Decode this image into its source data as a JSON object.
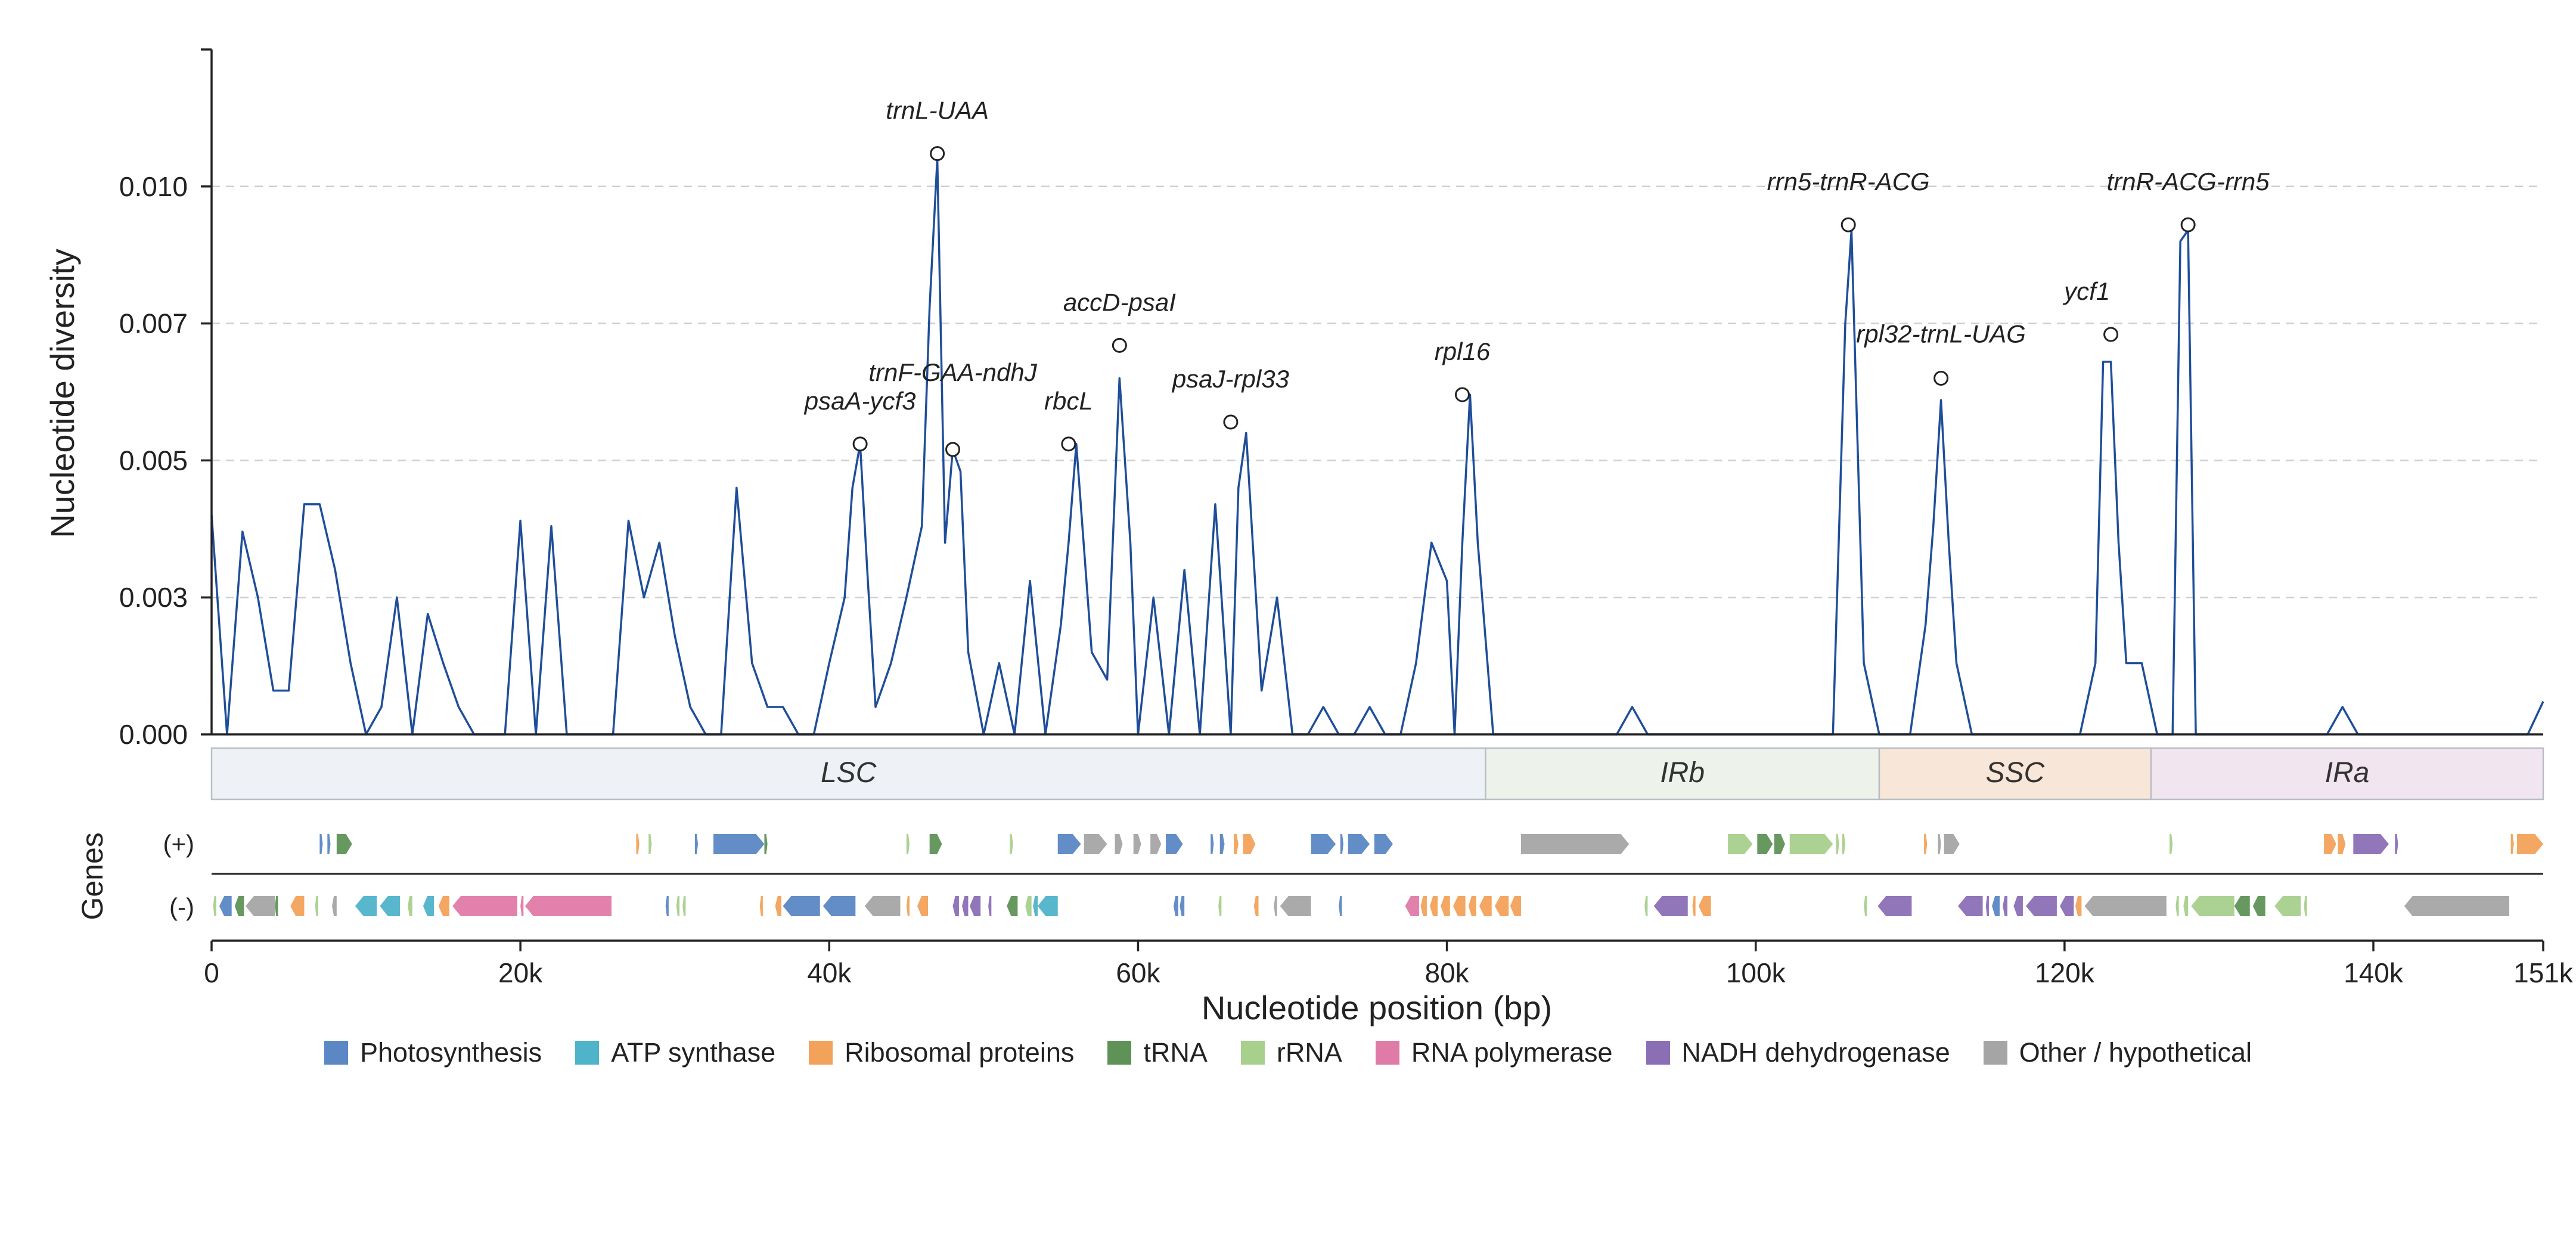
{
  "chart_data": {
    "type": "line",
    "ylabel": "Nucleotide diversity",
    "xlabel": "Nucleotide position (bp)",
    "genes_label": "Genes",
    "strand_plus_label": "(+)",
    "strand_minus_label": "(-)",
    "xlim": [
      0,
      151000
    ],
    "ylim": [
      0,
      0.0125
    ],
    "yticks": [
      0.0,
      0.0025,
      0.005,
      0.0075,
      0.01
    ],
    "ytick_labels": [
      "0.000",
      "0.003",
      "0.005",
      "0.007",
      "0.010"
    ],
    "xticks": [
      0,
      20000,
      40000,
      60000,
      80000,
      100000,
      120000,
      140000,
      151000
    ],
    "xtick_labels": [
      "0",
      "20k",
      "40k",
      "60k",
      "80k",
      "100k",
      "120k",
      "140k",
      "151k"
    ],
    "grid": "horizontal dashed",
    "line_color": "#1f4e99",
    "series": [
      {
        "x": [
          0,
          1000,
          2000,
          3000,
          4000,
          5000,
          6000,
          7000,
          8000,
          9000,
          10000,
          11000,
          12000,
          13000,
          14000,
          15000,
          16000,
          17000,
          18000,
          19000,
          20000,
          21000,
          22000,
          23000,
          24000,
          25000,
          26000,
          27000,
          28000,
          29000,
          30000,
          31000,
          32000,
          33000,
          34000,
          35000,
          36000,
          37000,
          38000,
          39000,
          40000,
          41000,
          41500,
          42000,
          42500,
          43000,
          44000,
          45000,
          46000,
          46500,
          47000,
          47500,
          48000,
          48500,
          49000,
          50000,
          51000,
          52000,
          53000,
          54000,
          55000,
          55500,
          56000,
          57000,
          58000,
          58800,
          59500,
          60000,
          61000,
          62000,
          63000,
          64000,
          65000,
          66000,
          66500,
          67000,
          68000,
          69000,
          70000,
          71000,
          72000,
          73000,
          74000,
          75000,
          76000,
          77000,
          78000,
          79000,
          80000,
          80500,
          81000,
          81500,
          82000,
          83000,
          84000,
          85000,
          86000,
          87000,
          88000,
          89000,
          90000,
          91000,
          92000,
          93000,
          94000,
          95000,
          96000,
          97000,
          98000,
          99000,
          100000,
          101000,
          102000,
          103000,
          104000,
          105000,
          105800,
          106200,
          107000,
          108000,
          109000,
          110000,
          111000,
          111500,
          112000,
          112500,
          113000,
          114000,
          115000,
          116000,
          117000,
          118000,
          119000,
          120000,
          121000,
          122000,
          122500,
          123000,
          123500,
          124000,
          125000,
          126000,
          127000,
          127500,
          128000,
          128500,
          129000,
          130000,
          131000,
          132000,
          133000,
          134000,
          135000,
          136000,
          137000,
          138000,
          139000,
          140000,
          141000,
          142000,
          143000,
          144000,
          145000,
          146000,
          147000,
          148000,
          149000,
          150000,
          151000
        ],
        "y": [
          0.004,
          0.0,
          0.0037,
          0.0025,
          0.0008,
          0.0008,
          0.0042,
          0.0042,
          0.003,
          0.0013,
          0.0,
          0.0005,
          0.0025,
          0.0,
          0.0022,
          0.0013,
          0.0005,
          0.0,
          0.0,
          0.0,
          0.0039,
          0.0,
          0.0038,
          0.0,
          0.0,
          0.0,
          0.0,
          0.0039,
          0.0025,
          0.0035,
          0.0018,
          0.0005,
          0.0,
          0.0,
          0.0045,
          0.0013,
          0.0005,
          0.0005,
          0.0,
          0.0,
          0.0013,
          0.0025,
          0.0045,
          0.0053,
          0.0028,
          0.0005,
          0.0013,
          0.0025,
          0.0038,
          0.0078,
          0.0105,
          0.0035,
          0.0052,
          0.0048,
          0.0015,
          0.0,
          0.0013,
          0.0,
          0.0028,
          0.0,
          0.002,
          0.0035,
          0.0053,
          0.0015,
          0.001,
          0.0065,
          0.0035,
          0.0,
          0.0025,
          0.0,
          0.003,
          0.0,
          0.0042,
          0.0,
          0.0045,
          0.0055,
          0.0008,
          0.0025,
          0.0,
          0.0,
          0.0005,
          0.0,
          0.0,
          0.0005,
          0.0,
          0.0,
          0.0013,
          0.0035,
          0.0028,
          0.0,
          0.0035,
          0.0062,
          0.0035,
          0.0,
          0.0,
          0.0,
          0.0,
          0.0,
          0.0,
          0.0,
          0.0,
          0.0,
          0.0005,
          0.0,
          0.0,
          0.0,
          0.0,
          0.0,
          0.0,
          0.0,
          0.0,
          0.0,
          0.0,
          0.0,
          0.0,
          0.0,
          0.0075,
          0.0092,
          0.0013,
          0.0,
          0.0,
          0.0,
          0.002,
          0.0038,
          0.0061,
          0.0035,
          0.0013,
          0.0,
          0.0,
          0.0,
          0.0,
          0.0,
          0.0,
          0.0,
          0.0,
          0.0013,
          0.0068,
          0.0068,
          0.0035,
          0.0013,
          0.0013,
          0.0,
          0.0,
          0.009,
          0.0092,
          0.0,
          0.0,
          0.0,
          0.0,
          0.0,
          0.0,
          0.0,
          0.0,
          0.0,
          0.0,
          0.0005,
          0.0,
          0.0,
          0.0,
          0.0,
          0.0,
          0.0,
          0.0,
          0.0,
          0.0,
          0.0,
          0.0,
          0.0,
          0.0006
        ]
      }
    ],
    "peaks": [
      {
        "label": "psaA-ycf3",
        "x": 42000,
        "y": 0.0053
      },
      {
        "label": "trnL-UAA",
        "x": 47000,
        "y": 0.0106
      },
      {
        "label": "trnF-GAA-ndhJ",
        "x": 48000,
        "y": 0.0052
      },
      {
        "label": "rbcL",
        "x": 55500,
        "y": 0.0053
      },
      {
        "label": "accD-psaI",
        "x": 58800,
        "y": 0.0071
      },
      {
        "label": "psaJ-rpl33",
        "x": 66000,
        "y": 0.0057
      },
      {
        "label": "rpl16",
        "x": 81000,
        "y": 0.0062
      },
      {
        "label": "rrn5-trnR-ACG",
        "x": 106000,
        "y": 0.0093
      },
      {
        "label": "rpl32-trnL-UAG",
        "x": 112000,
        "y": 0.0065
      },
      {
        "label": "ycf1",
        "x": 123000,
        "y": 0.0073
      },
      {
        "label": "trnR-ACG-rrn5",
        "x": 128000,
        "y": 0.0093
      }
    ],
    "regions": [
      {
        "label": "LSC",
        "start": 0,
        "end": 82500,
        "color": "#eef2f6"
      },
      {
        "label": "IRb",
        "start": 82500,
        "end": 108000,
        "color": "#edf3eb"
      },
      {
        "label": "SSC",
        "start": 108000,
        "end": 125600,
        "color": "#f8e7d8"
      },
      {
        "label": "IRa",
        "start": 125600,
        "end": 151000,
        "color": "#f1e5f0"
      }
    ],
    "legend": [
      {
        "label": "Photosynthesis",
        "color": "#5b87c4"
      },
      {
        "label": "ATP synthase",
        "color": "#4fb3c9"
      },
      {
        "label": "Ribosomal proteins",
        "color": "#f2a25a"
      },
      {
        "label": "tRNA",
        "color": "#5e9257"
      },
      {
        "label": "rRNA",
        "color": "#a8d08d"
      },
      {
        "label": "RNA polymerase",
        "color": "#e07ba8"
      },
      {
        "label": "NADH dehydrogenase",
        "color": "#8b6fb5"
      },
      {
        "label": "Other / hypothetical",
        "color": "#a5a5a5"
      }
    ],
    "genes_plus": [
      {
        "s": 7000,
        "e": 7200,
        "c": 0
      },
      {
        "s": 7500,
        "e": 7700,
        "c": 0
      },
      {
        "s": 8100,
        "e": 9100,
        "c": 3
      },
      {
        "s": 27500,
        "e": 27700,
        "c": 2
      },
      {
        "s": 28300,
        "e": 28500,
        "c": 4
      },
      {
        "s": 31300,
        "e": 31500,
        "c": 0
      },
      {
        "s": 32500,
        "e": 35800,
        "c": 0
      },
      {
        "s": 35800,
        "e": 36000,
        "c": 3
      },
      {
        "s": 45000,
        "e": 45200,
        "c": 4
      },
      {
        "s": 46500,
        "e": 47300,
        "c": 3
      },
      {
        "s": 51700,
        "e": 51900,
        "c": 4
      },
      {
        "s": 54800,
        "e": 56300,
        "c": 0
      },
      {
        "s": 56500,
        "e": 58000,
        "c": 7
      },
      {
        "s": 58500,
        "e": 59000,
        "c": 7
      },
      {
        "s": 59700,
        "e": 60200,
        "c": 7
      },
      {
        "s": 60800,
        "e": 61500,
        "c": 7
      },
      {
        "s": 61800,
        "e": 62900,
        "c": 0
      },
      {
        "s": 64700,
        "e": 64900,
        "c": 0
      },
      {
        "s": 65300,
        "e": 65600,
        "c": 0
      },
      {
        "s": 66200,
        "e": 66500,
        "c": 2
      },
      {
        "s": 66800,
        "e": 67600,
        "c": 2
      },
      {
        "s": 71200,
        "e": 72800,
        "c": 0
      },
      {
        "s": 73100,
        "e": 73300,
        "c": 0
      },
      {
        "s": 73600,
        "e": 75000,
        "c": 0
      },
      {
        "s": 75300,
        "e": 76500,
        "c": 0
      },
      {
        "s": 84800,
        "e": 91800,
        "c": 7
      },
      {
        "s": 98200,
        "e": 99800,
        "c": 4
      },
      {
        "s": 100100,
        "e": 101100,
        "c": 3
      },
      {
        "s": 101200,
        "e": 101900,
        "c": 3
      },
      {
        "s": 102200,
        "e": 105000,
        "c": 4
      },
      {
        "s": 105200,
        "e": 105400,
        "c": 4
      },
      {
        "s": 105600,
        "e": 105800,
        "c": 4
      },
      {
        "s": 110900,
        "e": 111100,
        "c": 2
      },
      {
        "s": 111800,
        "e": 112000,
        "c": 7
      },
      {
        "s": 112200,
        "e": 113200,
        "c": 7
      },
      {
        "s": 126800,
        "e": 127000,
        "c": 4
      },
      {
        "s": 136800,
        "e": 137600,
        "c": 2
      },
      {
        "s": 137700,
        "e": 138200,
        "c": 2
      },
      {
        "s": 138700,
        "e": 141000,
        "c": 6
      },
      {
        "s": 141400,
        "e": 141600,
        "c": 6
      },
      {
        "s": 148900,
        "e": 149100,
        "c": 2
      },
      {
        "s": 149300,
        "e": 151000,
        "c": 2
      }
    ],
    "genes_minus": [
      {
        "s": 100,
        "e": 300,
        "c": 4
      },
      {
        "s": 500,
        "e": 1300,
        "c": 0
      },
      {
        "s": 1500,
        "e": 2100,
        "c": 3
      },
      {
        "s": 2200,
        "e": 4100,
        "c": 7
      },
      {
        "s": 4100,
        "e": 4300,
        "c": 3
      },
      {
        "s": 5100,
        "e": 6000,
        "c": 2
      },
      {
        "s": 6700,
        "e": 6900,
        "c": 4
      },
      {
        "s": 7800,
        "e": 8100,
        "c": 7
      },
      {
        "s": 9300,
        "e": 10700,
        "c": 1
      },
      {
        "s": 10900,
        "e": 12200,
        "c": 1
      },
      {
        "s": 12700,
        "e": 13000,
        "c": 4
      },
      {
        "s": 13700,
        "e": 14400,
        "c": 1
      },
      {
        "s": 14700,
        "e": 15400,
        "c": 2
      },
      {
        "s": 15600,
        "e": 19800,
        "c": 5
      },
      {
        "s": 20000,
        "e": 20200,
        "c": 5
      },
      {
        "s": 20300,
        "e": 25900,
        "c": 5
      },
      {
        "s": 29400,
        "e": 29600,
        "c": 0
      },
      {
        "s": 30100,
        "e": 30300,
        "c": 4
      },
      {
        "s": 30500,
        "e": 30700,
        "c": 4
      },
      {
        "s": 35500,
        "e": 35700,
        "c": 2
      },
      {
        "s": 36500,
        "e": 36900,
        "c": 2
      },
      {
        "s": 37000,
        "e": 39400,
        "c": 0
      },
      {
        "s": 39600,
        "e": 41700,
        "c": 0
      },
      {
        "s": 42300,
        "e": 44600,
        "c": 7
      },
      {
        "s": 45000,
        "e": 45200,
        "c": 2
      },
      {
        "s": 45700,
        "e": 46400,
        "c": 2
      },
      {
        "s": 48000,
        "e": 48400,
        "c": 6
      },
      {
        "s": 48600,
        "e": 49000,
        "c": 6
      },
      {
        "s": 49100,
        "e": 49800,
        "c": 6
      },
      {
        "s": 50300,
        "e": 50500,
        "c": 6
      },
      {
        "s": 51500,
        "e": 52200,
        "c": 3
      },
      {
        "s": 52700,
        "e": 53100,
        "c": 4
      },
      {
        "s": 53200,
        "e": 53500,
        "c": 1
      },
      {
        "s": 53500,
        "e": 54800,
        "c": 1
      },
      {
        "s": 62300,
        "e": 62600,
        "c": 0
      },
      {
        "s": 62700,
        "e": 63000,
        "c": 0
      },
      {
        "s": 65200,
        "e": 65400,
        "c": 4
      },
      {
        "s": 67500,
        "e": 67800,
        "c": 2
      },
      {
        "s": 68800,
        "e": 69000,
        "c": 7
      },
      {
        "s": 69200,
        "e": 71200,
        "c": 7
      },
      {
        "s": 73000,
        "e": 73200,
        "c": 0
      },
      {
        "s": 77300,
        "e": 78200,
        "c": 5
      },
      {
        "s": 78300,
        "e": 78700,
        "c": 2
      },
      {
        "s": 78900,
        "e": 79400,
        "c": 2
      },
      {
        "s": 79600,
        "e": 80200,
        "c": 2
      },
      {
        "s": 80400,
        "e": 81200,
        "c": 2
      },
      {
        "s": 81400,
        "e": 81900,
        "c": 2
      },
      {
        "s": 82100,
        "e": 82900,
        "c": 2
      },
      {
        "s": 83100,
        "e": 84000,
        "c": 2
      },
      {
        "s": 84100,
        "e": 84800,
        "c": 2
      },
      {
        "s": 92800,
        "e": 93000,
        "c": 4
      },
      {
        "s": 93400,
        "e": 95600,
        "c": 6
      },
      {
        "s": 95900,
        "e": 96100,
        "c": 2
      },
      {
        "s": 96300,
        "e": 97100,
        "c": 2
      },
      {
        "s": 107000,
        "e": 107200,
        "c": 4
      },
      {
        "s": 107900,
        "e": 110100,
        "c": 6
      },
      {
        "s": 113100,
        "e": 114700,
        "c": 6
      },
      {
        "s": 114900,
        "e": 115100,
        "c": 6
      },
      {
        "s": 115300,
        "e": 115800,
        "c": 0
      },
      {
        "s": 116000,
        "e": 116300,
        "c": 6
      },
      {
        "s": 116700,
        "e": 117300,
        "c": 6
      },
      {
        "s": 117500,
        "e": 119500,
        "c": 6
      },
      {
        "s": 119700,
        "e": 120600,
        "c": 6
      },
      {
        "s": 120700,
        "e": 121100,
        "c": 2
      },
      {
        "s": 121300,
        "e": 126600,
        "c": 7
      },
      {
        "s": 127200,
        "e": 127400,
        "c": 4
      },
      {
        "s": 127700,
        "e": 128000,
        "c": 4
      },
      {
        "s": 128200,
        "e": 131000,
        "c": 4
      },
      {
        "s": 131000,
        "e": 132000,
        "c": 3
      },
      {
        "s": 132200,
        "e": 133000,
        "c": 3
      },
      {
        "s": 133600,
        "e": 135300,
        "c": 4
      },
      {
        "s": 135500,
        "e": 135700,
        "c": 4
      },
      {
        "s": 142000,
        "e": 148800,
        "c": 7
      }
    ]
  }
}
